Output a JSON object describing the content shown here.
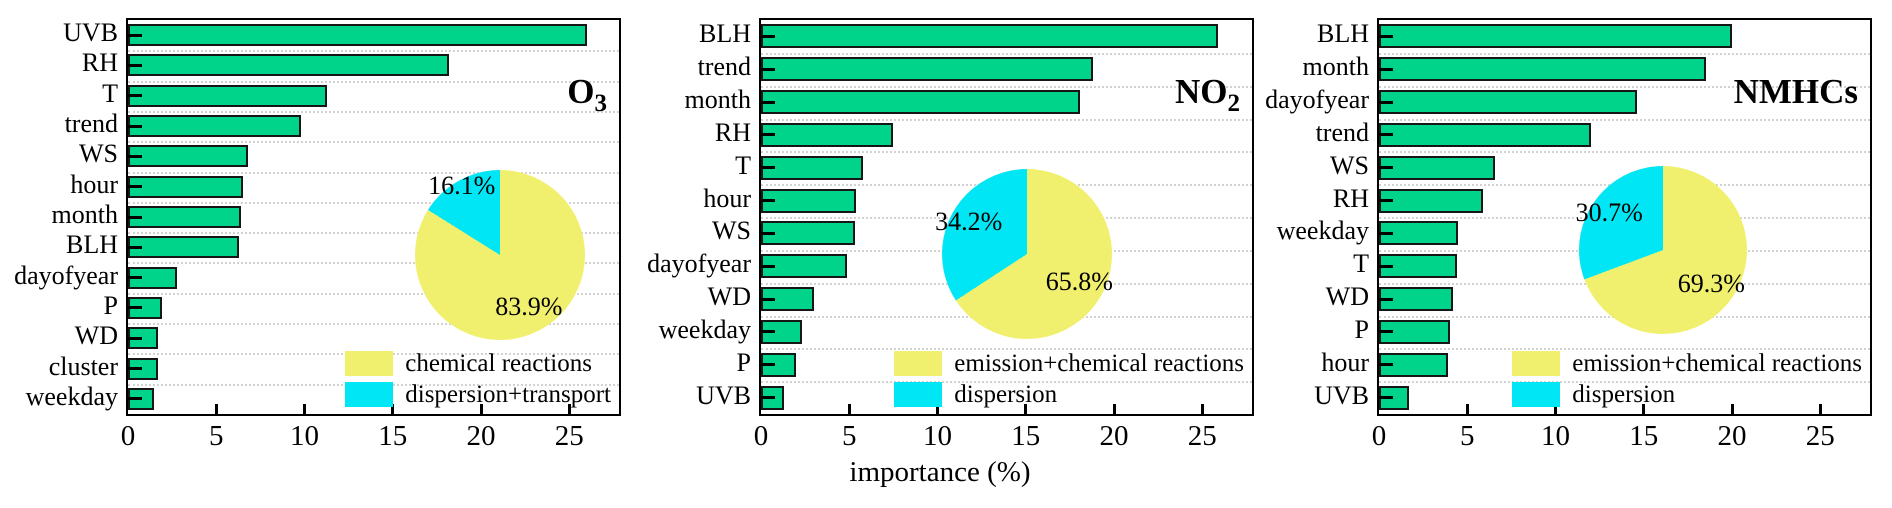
{
  "xlabel": "importance (%)",
  "colors": {
    "bar": "#00D38A",
    "bar_edge": "#161616",
    "pie_main": "#F0F06E",
    "pie_secondary": "#00E6F5",
    "grid": "#D2D2D2",
    "spine": "#000000"
  },
  "chart_data": [
    {
      "type": "bar",
      "orientation": "horizontal",
      "title": "O",
      "title_sub": "3",
      "categories": [
        "UVB",
        "RH",
        "T",
        "trend",
        "WS",
        "hour",
        "month",
        "BLH",
        "dayofyear",
        "P",
        "WD",
        "cluster",
        "weekday"
      ],
      "values": [
        26.0,
        18.2,
        11.3,
        9.8,
        6.8,
        6.5,
        6.4,
        6.3,
        2.8,
        1.9,
        1.7,
        1.7,
        1.5
      ],
      "xlim": [
        0,
        27.8
      ],
      "x_ticks": [
        0,
        5,
        10,
        15,
        20,
        25
      ],
      "grid": "dotted-horizontal",
      "inset_pie": {
        "type": "pie",
        "start": "top",
        "direction": "clockwise",
        "slices": [
          {
            "label": "chemical reactions",
            "value": 83.9,
            "pct_label": "83.9%",
            "color": "#F0F06E"
          },
          {
            "label": "dispersion+transport",
            "value": 16.1,
            "pct_label": "16.1%",
            "color": "#00E6F5"
          }
        ]
      },
      "legend": [
        "chemical reactions",
        "dispersion+transport"
      ]
    },
    {
      "type": "bar",
      "orientation": "horizontal",
      "title": "NO",
      "title_sub": "2",
      "categories": [
        "BLH",
        "trend",
        "month",
        "RH",
        "T",
        "hour",
        "WS",
        "dayofyear",
        "WD",
        "weekday",
        "P",
        "UVB"
      ],
      "values": [
        25.9,
        18.8,
        18.1,
        7.5,
        5.8,
        5.4,
        5.3,
        4.9,
        3.0,
        2.3,
        2.0,
        1.3
      ],
      "xlim": [
        0,
        27.8
      ],
      "x_ticks": [
        0,
        5,
        10,
        15,
        20,
        25
      ],
      "grid": "dotted-horizontal",
      "inset_pie": {
        "type": "pie",
        "start": "top",
        "direction": "clockwise",
        "slices": [
          {
            "label": "emission+chemical reactions",
            "value": 65.8,
            "pct_label": "65.8%",
            "color": "#F0F06E"
          },
          {
            "label": "dispersion",
            "value": 34.2,
            "pct_label": "34.2%",
            "color": "#00E6F5"
          }
        ]
      },
      "legend": [
        "emission+chemical reactions",
        "dispersion"
      ]
    },
    {
      "type": "bar",
      "orientation": "horizontal",
      "title": "NMHCs",
      "title_sub": "",
      "categories": [
        "BLH",
        "month",
        "dayofyear",
        "trend",
        "WS",
        "RH",
        "weekday",
        "T",
        "WD",
        "P",
        "hour",
        "UVB"
      ],
      "values": [
        20.0,
        18.5,
        14.6,
        12.0,
        6.6,
        5.9,
        4.5,
        4.4,
        4.2,
        4.0,
        3.9,
        1.7
      ],
      "xlim": [
        0,
        27.8
      ],
      "x_ticks": [
        0,
        5,
        10,
        15,
        20,
        25
      ],
      "grid": "dotted-horizontal",
      "inset_pie": {
        "type": "pie",
        "start": "top",
        "direction": "clockwise",
        "slices": [
          {
            "label": "emission+chemical reactions",
            "value": 69.3,
            "pct_label": "69.3%",
            "color": "#F0F06E"
          },
          {
            "label": "dispersion",
            "value": 30.7,
            "pct_label": "30.7%",
            "color": "#00E6F5"
          }
        ]
      },
      "legend": [
        "emission+chemical reactions",
        "dispersion"
      ]
    }
  ]
}
